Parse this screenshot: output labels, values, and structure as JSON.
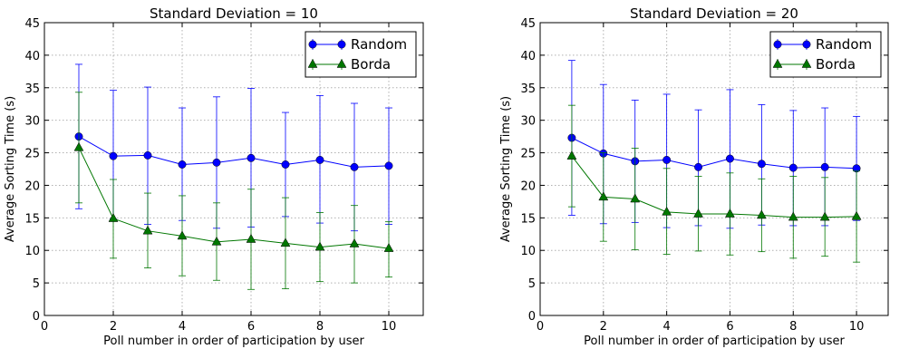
{
  "colors": {
    "random": "#0000ff",
    "borda": "#007700",
    "grid": "#b0b0b0"
  },
  "chart_data": [
    {
      "type": "line",
      "title": "Standard Deviation = 10",
      "xlabel": "Poll number in order of participation by user",
      "ylabel": "Average Sorting Time (s)",
      "xlim": [
        0,
        11
      ],
      "ylim": [
        0,
        45
      ],
      "xticks": [
        0,
        2,
        4,
        6,
        8,
        10
      ],
      "yticks": [
        0,
        5,
        10,
        15,
        20,
        25,
        30,
        35,
        40,
        45
      ],
      "grid": true,
      "legend": "top-right",
      "x": [
        1,
        2,
        3,
        4,
        5,
        6,
        7,
        8,
        9,
        10
      ],
      "series": [
        {
          "name": "Random",
          "marker": "circle",
          "values": [
            27.5,
            24.5,
            24.6,
            23.2,
            23.5,
            24.2,
            23.2,
            23.9,
            22.8,
            23.0
          ],
          "err_low": [
            16.4,
            14.8,
            14.0,
            14.6,
            13.4,
            13.6,
            15.2,
            14.2,
            13.0,
            14.0
          ],
          "err_high": [
            38.6,
            34.6,
            35.1,
            31.9,
            33.6,
            34.9,
            31.2,
            33.8,
            32.6,
            31.9
          ]
        },
        {
          "name": "Borda",
          "marker": "triangle",
          "values": [
            25.8,
            14.9,
            13.0,
            12.2,
            11.3,
            11.7,
            11.1,
            10.5,
            11.0,
            10.3
          ],
          "err_low": [
            17.3,
            8.8,
            7.3,
            6.1,
            5.4,
            4.0,
            4.1,
            5.2,
            5.0,
            5.9
          ],
          "err_high": [
            34.3,
            20.9,
            18.8,
            18.4,
            17.3,
            19.4,
            18.1,
            15.8,
            16.9,
            14.4
          ]
        }
      ]
    },
    {
      "type": "line",
      "title": "Standard Deviation = 20",
      "xlabel": "Poll number in order of participation by user",
      "ylabel": "Average Sorting Time (s)",
      "xlim": [
        0,
        11
      ],
      "ylim": [
        0,
        45
      ],
      "xticks": [
        0,
        2,
        4,
        6,
        8,
        10
      ],
      "yticks": [
        0,
        5,
        10,
        15,
        20,
        25,
        30,
        35,
        40,
        45
      ],
      "grid": true,
      "legend": "top-right",
      "x": [
        1,
        2,
        3,
        4,
        5,
        6,
        7,
        8,
        9,
        10
      ],
      "series": [
        {
          "name": "Random",
          "marker": "circle",
          "values": [
            27.3,
            24.9,
            23.7,
            23.9,
            22.8,
            24.1,
            23.3,
            22.7,
            22.8,
            22.6
          ],
          "err_low": [
            15.4,
            14.1,
            14.3,
            13.5,
            13.8,
            13.4,
            13.9,
            13.8,
            13.8,
            14.6
          ],
          "err_high": [
            39.2,
            35.5,
            33.1,
            34.0,
            31.6,
            34.7,
            32.4,
            31.5,
            31.9,
            30.6
          ]
        },
        {
          "name": "Borda",
          "marker": "triangle",
          "values": [
            24.5,
            18.2,
            17.9,
            15.9,
            15.6,
            15.6,
            15.4,
            15.1,
            15.1,
            15.2
          ],
          "err_low": [
            16.7,
            11.4,
            10.1,
            9.4,
            9.9,
            9.3,
            9.8,
            8.8,
            9.1,
            8.2
          ],
          "err_high": [
            32.3,
            25.0,
            25.7,
            22.6,
            21.4,
            21.9,
            21.0,
            21.4,
            21.2,
            22.2
          ]
        }
      ]
    }
  ]
}
